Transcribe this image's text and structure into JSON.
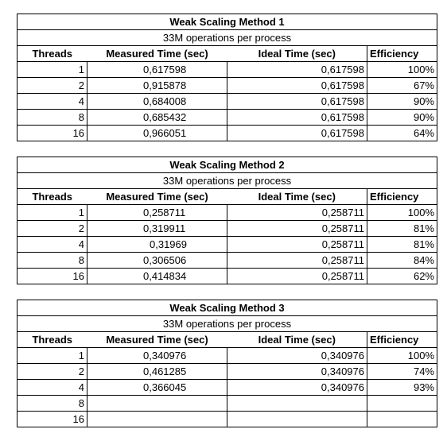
{
  "tables": [
    {
      "title": "Weak Scaling Method 1",
      "subtitle": "33M operations per process",
      "headers": [
        "Threads",
        "Measured Time (sec)",
        "Ideal Time (sec)",
        "Efficiency"
      ],
      "rows": [
        [
          "1",
          "0,617598",
          "0,617598",
          "100%"
        ],
        [
          "2",
          "0,915878",
          "0,617598",
          "67%"
        ],
        [
          "4",
          "0,684008",
          "0,617598",
          "90%"
        ],
        [
          "8",
          "0,685432",
          "0,617598",
          "90%"
        ],
        [
          "16",
          "0,966051",
          "0,617598",
          "64%"
        ]
      ]
    },
    {
      "title": "Weak Scaling Method 2",
      "subtitle": "33M operations per process",
      "headers": [
        "Threads",
        "Measured Time (sec)",
        "Ideal Time (sec)",
        "Efficiency"
      ],
      "rows": [
        [
          "1",
          "0,258711",
          "0,258711",
          "100%"
        ],
        [
          "2",
          "0,319911",
          "0,258711",
          "81%"
        ],
        [
          "4",
          "0,31969",
          "0,258711",
          "81%"
        ],
        [
          "8",
          "0,306506",
          "0,258711",
          "84%"
        ],
        [
          "16",
          "0,414834",
          "0,258711",
          "62%"
        ]
      ]
    },
    {
      "title": "Weak Scaling Method 3",
      "subtitle": "33M operations per process",
      "headers": [
        "Threads",
        "Measured Time (sec)",
        "Ideal Time (sec)",
        "Efficiency"
      ],
      "rows": [
        [
          "1",
          "0,340976",
          "0,340976",
          "100%"
        ],
        [
          "2",
          "0,461285",
          "0,340976",
          "74%"
        ],
        [
          "4",
          "0,366045",
          "0,340976",
          "93%"
        ],
        [
          "8",
          "",
          "",
          ""
        ],
        [
          "16",
          "",
          "",
          ""
        ]
      ]
    }
  ]
}
